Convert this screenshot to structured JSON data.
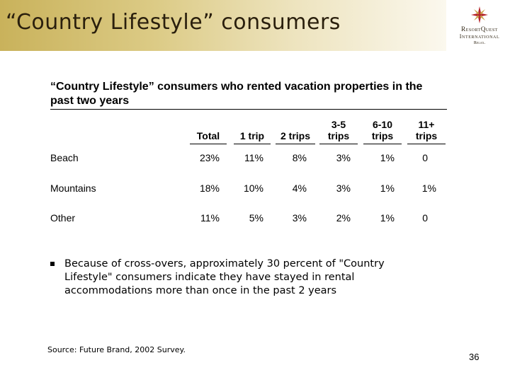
{
  "page": {
    "title": "“Country Lifestyle” consumers",
    "page_number": "36",
    "source": "Source:  Future Brand, 2002 Survey."
  },
  "logo": {
    "line1": "ResortQuest",
    "line2": "International",
    "line3": "Relax.",
    "colors": {
      "star_red": "#b5252b",
      "star_gold": "#c9a449"
    }
  },
  "colors": {
    "band_start": "#c9b25b",
    "band_end": "#fbf8ee",
    "title_text": "#2a1f0d"
  },
  "table": {
    "heading": "“Country Lifestyle” consumers who rented vacation properties in the past two years",
    "columns": [
      {
        "line1": "",
        "line2": "Total"
      },
      {
        "line1": "",
        "line2": "1 trip"
      },
      {
        "line1": "",
        "line2": "2 trips"
      },
      {
        "line1": "3-5",
        "line2": "trips"
      },
      {
        "line1": "6-10",
        "line2": "trips"
      },
      {
        "line1": "11+",
        "line2": "trips"
      }
    ],
    "rows": [
      {
        "label": "Beach",
        "values": [
          "23%",
          "11%",
          "8%",
          "3%",
          "1%",
          "0"
        ]
      },
      {
        "label": "Mountains",
        "values": [
          "18%",
          "10%",
          "4%",
          "3%",
          "1%",
          "1%"
        ]
      },
      {
        "label": "Other",
        "values": [
          "11%",
          "5%",
          "3%",
          "2%",
          "1%",
          "0"
        ]
      }
    ]
  },
  "bullet": {
    "text": "Because of cross-overs, approximately 30 percent of \"Country Lifestyle\" consumers indicate they have stayed in rental accommodations more than once in the past 2 years"
  }
}
